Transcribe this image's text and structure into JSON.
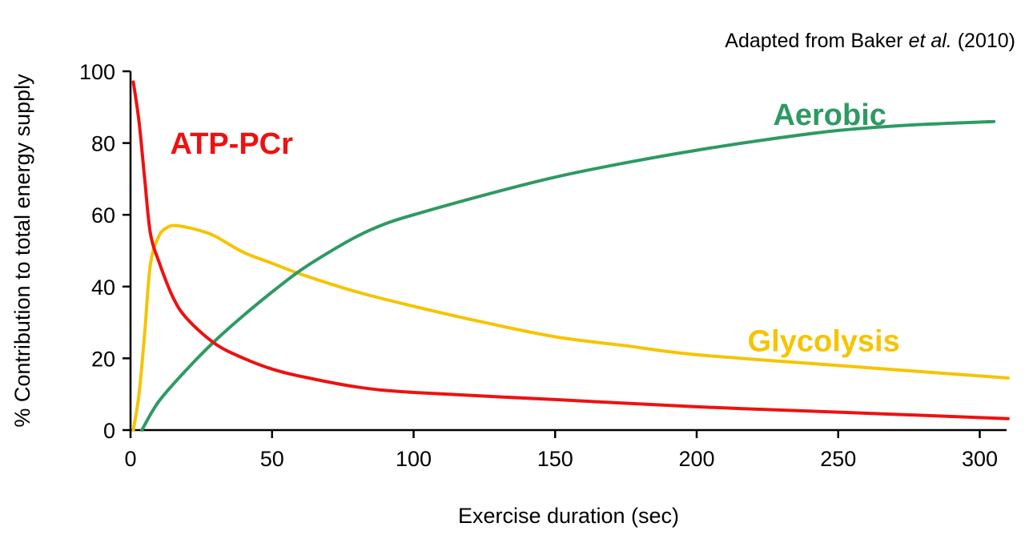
{
  "chart_data": {
    "type": "line",
    "xlabel": "Exercise duration (sec)",
    "ylabel": "% Contribution to total energy supply",
    "xlim": [
      0,
      310
    ],
    "ylim": [
      0,
      100
    ],
    "xticks": [
      0,
      50,
      100,
      150,
      200,
      250,
      300
    ],
    "yticks": [
      0,
      20,
      40,
      60,
      80,
      100
    ],
    "grid": false,
    "annotation": {
      "prefix": "Adapted from Baker ",
      "italic": "et al.",
      "suffix": " (2010)"
    },
    "series": [
      {
        "name": "ATP-PCr",
        "color": "#ee1111",
        "label_x": 14,
        "label_y": 77,
        "x": [
          1,
          3,
          5,
          7,
          10,
          15,
          20,
          30,
          40,
          50,
          60,
          80,
          100,
          150,
          200,
          250,
          310
        ],
        "y": [
          97,
          86,
          70,
          55,
          47,
          37,
          31,
          24,
          20,
          17,
          15,
          12,
          10.5,
          8.5,
          6.5,
          5,
          3.2
        ]
      },
      {
        "name": "Aerobic",
        "color": "#2e9a63",
        "label_x": 227,
        "label_y": 85,
        "x": [
          4,
          10,
          20,
          30,
          40,
          50,
          60,
          70,
          80,
          90,
          100,
          125,
          150,
          175,
          200,
          225,
          250,
          275,
          305
        ],
        "y": [
          0,
          8,
          17,
          25,
          32,
          38.5,
          44.5,
          49.5,
          54,
          57.5,
          60,
          65.5,
          70.5,
          74.5,
          78,
          81,
          83.5,
          85,
          86
        ]
      },
      {
        "name": "Glycolysis",
        "color": "#f5c400",
        "label_x": 218,
        "label_y": 22,
        "x": [
          1,
          3,
          5,
          7,
          10,
          13,
          16,
          20,
          25,
          30,
          40,
          50,
          60,
          80,
          100,
          125,
          150,
          175,
          200,
          250,
          310
        ],
        "y": [
          0,
          10,
          27,
          46,
          54,
          56.5,
          57,
          56.5,
          55.5,
          54,
          49.5,
          46.5,
          43.5,
          38.5,
          34.5,
          30,
          26,
          23.5,
          21,
          18,
          14.5
        ]
      }
    ]
  }
}
